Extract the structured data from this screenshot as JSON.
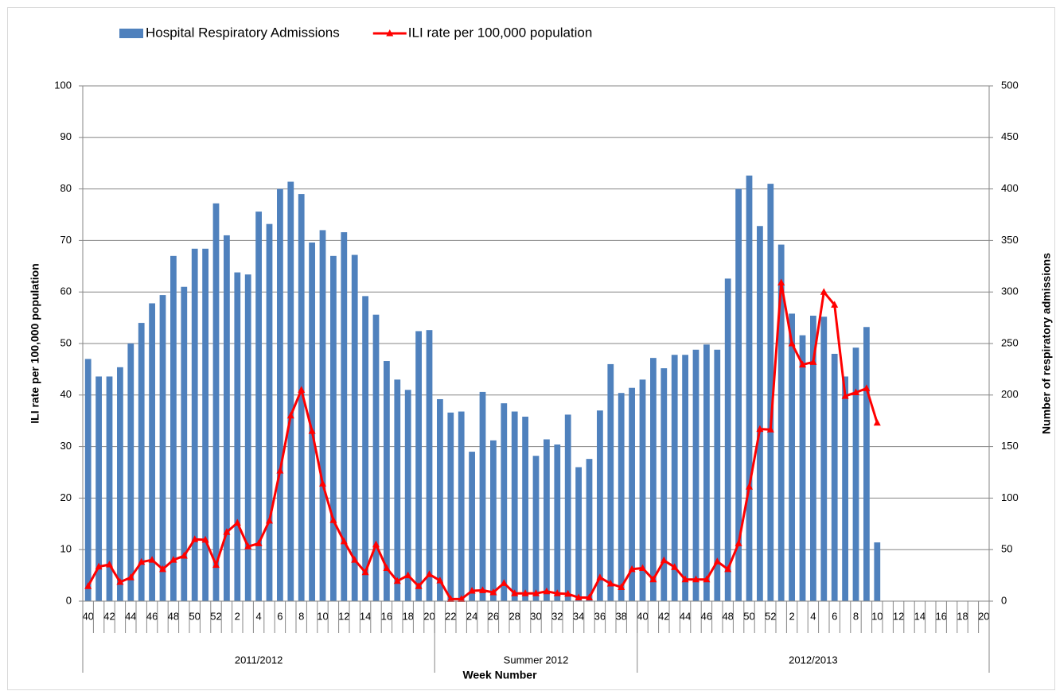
{
  "chart_data": {
    "type": "combo",
    "x_title": "Week Number",
    "y_title": "ILI rate per 100,000 population",
    "y2_title": "Number of respiratory admissions",
    "legend": "top",
    "grid": true,
    "categories": [
      "40",
      null,
      "42",
      null,
      "44",
      null,
      "46",
      null,
      "48",
      null,
      "50",
      null,
      "52",
      null,
      "2",
      null,
      "4",
      null,
      "6",
      null,
      "8",
      null,
      "10",
      null,
      "12",
      null,
      "14",
      null,
      "16",
      null,
      "18",
      null,
      "20",
      null,
      "22",
      null,
      "24",
      null,
      "26",
      null,
      "28",
      null,
      "30",
      null,
      "32",
      null,
      "34",
      null,
      "36",
      null,
      "38",
      null,
      "40",
      null,
      "42",
      null,
      "44",
      null,
      "46",
      null,
      "48",
      null,
      "50",
      null,
      "52",
      null,
      "2",
      null,
      "4",
      null,
      "6",
      null,
      "8",
      null,
      "10",
      null,
      "12",
      null,
      "14",
      null,
      "16",
      null,
      "18",
      null,
      "20"
    ],
    "x_groups": [
      {
        "label": "2011/2012",
        "count": 33
      },
      {
        "label": "Summer 2012",
        "count": 19
      },
      {
        "label": "2012/2013",
        "count": 33
      }
    ],
    "ylim": [
      0,
      100
    ],
    "yticks": [
      0,
      10,
      20,
      30,
      40,
      50,
      60,
      70,
      80,
      90,
      100
    ],
    "y2lim": [
      0,
      500
    ],
    "y2ticks": [
      0,
      50,
      100,
      150,
      200,
      250,
      300,
      350,
      400,
      450,
      500
    ],
    "series": [
      {
        "name": "Hospital Respiratory Admissions",
        "type": "bar",
        "axis": "y2",
        "color": "#4f81bd",
        "values": [
          235,
          218,
          218,
          227,
          250,
          270,
          289,
          297,
          335,
          305,
          342,
          342,
          386,
          355,
          319,
          317,
          378,
          366,
          400,
          407,
          395,
          348,
          360,
          335,
          358,
          336,
          296,
          278,
          233,
          215,
          205,
          262,
          263,
          196,
          183,
          184,
          145,
          203,
          156,
          192,
          184,
          179,
          141,
          157,
          152,
          181,
          130,
          138,
          185,
          230,
          202,
          207,
          215,
          236,
          226,
          239,
          239,
          244,
          249,
          244,
          313,
          400,
          413,
          364,
          405,
          346,
          279,
          258,
          277,
          276,
          240,
          218,
          246,
          266,
          57,
          null,
          null,
          null,
          null,
          null,
          null,
          null,
          null,
          null,
          null
        ]
      },
      {
        "name": "ILI rate per 100,000 population",
        "type": "line",
        "axis": "y",
        "color": "#ff0000",
        "values": [
          2.9,
          6.7,
          7.1,
          3.7,
          4.6,
          7.6,
          8,
          6.2,
          8,
          8.8,
          12,
          11.9,
          7,
          13.4,
          15.2,
          10.6,
          11.2,
          15.6,
          25.3,
          36,
          41,
          33,
          22.8,
          15.7,
          11.6,
          8,
          5.6,
          11,
          6.4,
          3.9,
          5,
          2.9,
          5.2,
          4,
          0.4,
          0.4,
          2,
          2.1,
          1.7,
          3.5,
          1.5,
          1.5,
          1.5,
          1.9,
          1.5,
          1.4,
          0.7,
          0.7,
          4.6,
          3.4,
          2.7,
          6.2,
          6.4,
          4.2,
          7.9,
          6.6,
          4.2,
          4.2,
          4.2,
          7.7,
          6.2,
          11.2,
          22.2,
          33.4,
          33.3,
          61.8,
          50,
          45.9,
          46.4,
          60,
          57.5,
          39.8,
          40.5,
          41.3,
          34.6,
          null,
          null,
          null,
          null,
          null,
          null,
          null,
          null,
          null,
          null
        ]
      }
    ]
  }
}
